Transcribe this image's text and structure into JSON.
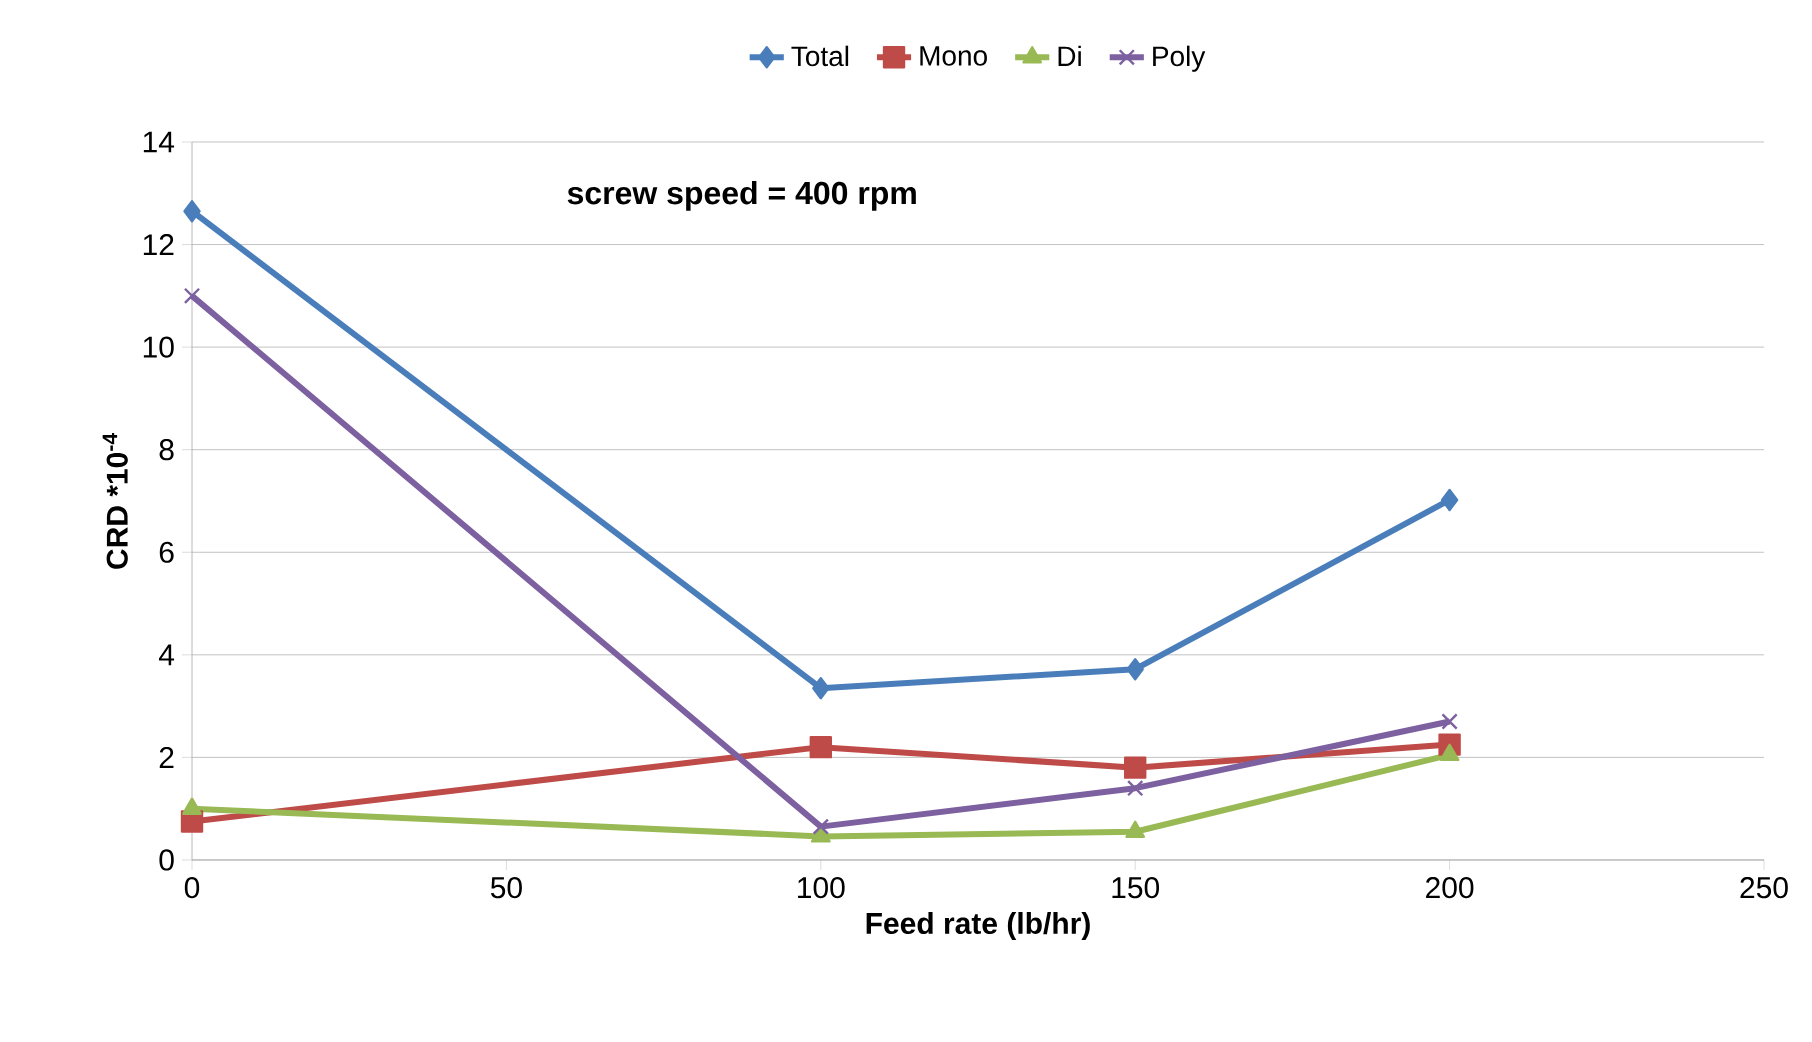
{
  "chart_data": {
    "type": "line",
    "annotations": [
      "screw speed = 400 rpm"
    ],
    "xlabel": "Feed rate (lb/hr)",
    "ylabel": "CRD *10$^{-4}$",
    "x": [
      0,
      100,
      150,
      200
    ],
    "series": [
      {
        "name": "Total",
        "color": "#4a7ebb",
        "marker": "diamond",
        "values": [
          12.65,
          3.35,
          3.72,
          7.02
        ]
      },
      {
        "name": "Mono",
        "color": "#be4b48",
        "marker": "square",
        "values": [
          0.75,
          2.2,
          1.8,
          2.25
        ]
      },
      {
        "name": "Di",
        "color": "#98b954",
        "marker": "triangle",
        "values": [
          1.0,
          0.46,
          0.55,
          2.05
        ]
      },
      {
        "name": "Poly",
        "color": "#7d60a0",
        "marker": "cross",
        "values": [
          11.0,
          0.65,
          1.4,
          2.7
        ]
      }
    ],
    "xlim": [
      0,
      250
    ],
    "xticks": [
      0,
      50,
      100,
      150,
      200,
      250
    ],
    "ylim": [
      0,
      14
    ],
    "yticks": [
      0,
      2,
      4,
      6,
      8,
      10,
      12,
      14
    ],
    "grid": "y",
    "legend": "top",
    "line_style": "solid"
  }
}
